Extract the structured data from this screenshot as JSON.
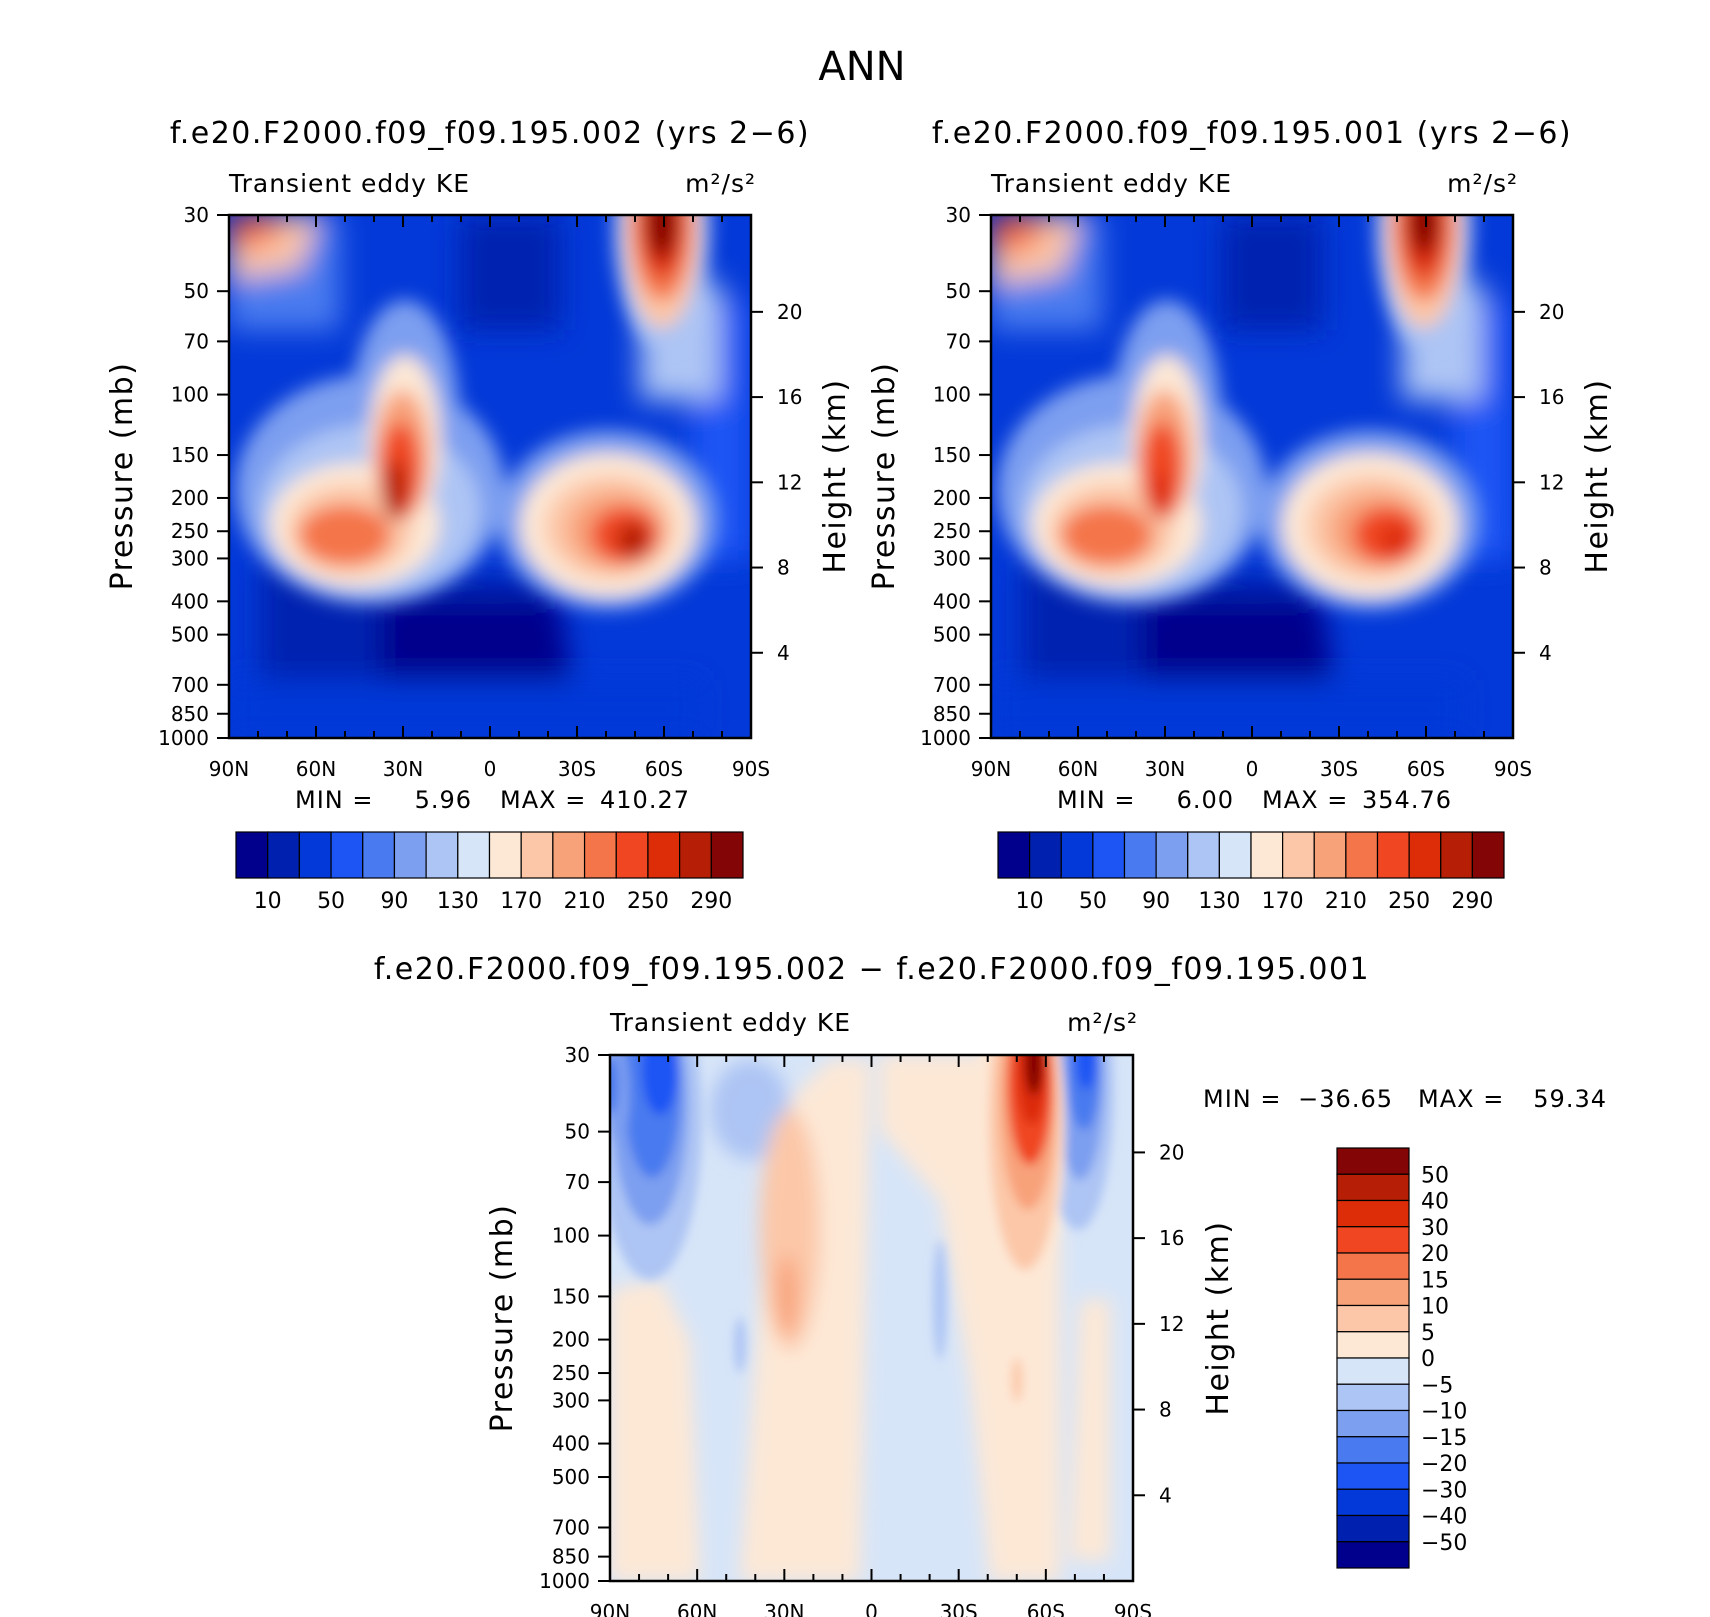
{
  "title": "ANN",
  "colors": {
    "axis": "#000000",
    "background": "#ffffff"
  },
  "chart_data": [
    {
      "id": "panel1",
      "type": "heatmap",
      "title": "f.e20.F2000.f09_f09.195.002 (yrs 2-6)",
      "variable": "Transient eddy KE",
      "units": "m²/s²",
      "ylabel": "Pressure (mb)",
      "y2label": "Height (km)",
      "x_ticks": [
        "90N",
        "60N",
        "30N",
        "0",
        "30S",
        "60S",
        "90S"
      ],
      "y_ticks": [
        "30",
        "50",
        "70",
        "100",
        "150",
        "200",
        "250",
        "300",
        "400",
        "500",
        "700",
        "850",
        "1000"
      ],
      "y2_ticks": [
        "20",
        "16",
        "12",
        "8",
        "4"
      ],
      "min_label": "MIN =",
      "min_value": "5.96",
      "max_label": "MAX =",
      "max_value": "410.27",
      "colorbar": {
        "colors": [
          "#00008c",
          "#0020b0",
          "#0339d8",
          "#1c55f4",
          "#4a7aef",
          "#7d9ff0",
          "#adc5f4",
          "#d7e5f8",
          "#fde8d6",
          "#fcc7a8",
          "#f8a27a",
          "#f47549",
          "#f04621",
          "#dc2c08",
          "#b61e06",
          "#830505"
        ],
        "labels": [
          "10",
          "50",
          "90",
          "130",
          "170",
          "210",
          "250",
          "290"
        ]
      },
      "blobs": [
        {
          "cx": 0.3,
          "cy": 0.25,
          "rx": 0.22,
          "ry": 0.22,
          "level": 15
        },
        {
          "cx": 0.22,
          "cy": 0.63,
          "rx": 0.11,
          "ry": 0.12,
          "level": 13
        },
        {
          "cx": 0.8,
          "cy": 0.03,
          "rx": 0.06,
          "ry": 0.14,
          "level": 15
        },
        {
          "cx": 0.03,
          "cy": 0.02,
          "rx": 0.13,
          "ry": 0.15,
          "level": 11
        }
      ]
    },
    {
      "id": "panel2",
      "type": "heatmap",
      "title": "f.e20.F2000.f09_f09.195.001 (yrs 2-6)",
      "variable": "Transient eddy KE",
      "units": "m²/s²",
      "ylabel": "Pressure (mb)",
      "y2label": "Height (km)",
      "x_ticks": [
        "90N",
        "60N",
        "30N",
        "0",
        "30S",
        "60S",
        "90S"
      ],
      "y_ticks": [
        "30",
        "50",
        "70",
        "100",
        "150",
        "200",
        "250",
        "300",
        "400",
        "500",
        "700",
        "850",
        "1000"
      ],
      "y2_ticks": [
        "20",
        "16",
        "12",
        "8",
        "4"
      ],
      "min_label": "MIN =",
      "min_value": "6.00",
      "max_label": "MAX =",
      "max_value": "354.76",
      "colorbar": {
        "colors": [
          "#00008c",
          "#0020b0",
          "#0339d8",
          "#1c55f4",
          "#4a7aef",
          "#7d9ff0",
          "#adc5f4",
          "#d7e5f8",
          "#fde8d6",
          "#fcc7a8",
          "#f8a27a",
          "#f47549",
          "#f04621",
          "#dc2c08",
          "#b61e06",
          "#830505"
        ],
        "labels": [
          "10",
          "50",
          "90",
          "130",
          "170",
          "210",
          "250",
          "290"
        ]
      }
    },
    {
      "id": "panel3",
      "type": "heatmap",
      "title": "f.e20.F2000.f09_f09.195.002 - f.e20.F2000.f09_f09.195.001",
      "variable": "Transient eddy KE",
      "units": "m²/s²",
      "ylabel": "Pressure (mb)",
      "y2label": "Height (km)",
      "x_ticks": [
        "90N",
        "60N",
        "30N",
        "0",
        "30S",
        "60S",
        "90S"
      ],
      "y_ticks": [
        "30",
        "50",
        "70",
        "100",
        "150",
        "200",
        "250",
        "300",
        "400",
        "500",
        "700",
        "850",
        "1000"
      ],
      "y2_ticks": [
        "20",
        "16",
        "12",
        "8",
        "4"
      ],
      "min_label": "MIN =",
      "min_value": "-36.65",
      "max_label": "MAX =",
      "max_value": "59.34",
      "colorbar": {
        "colors": [
          "#830505",
          "#b61e06",
          "#dc2c08",
          "#f04621",
          "#f47549",
          "#f8a27a",
          "#fcc7a8",
          "#fde8d6",
          "#d7e5f8",
          "#adc5f4",
          "#7d9ff0",
          "#4a7aef",
          "#1c55f4",
          "#0339d8",
          "#0020b0",
          "#00008c"
        ],
        "labels": [
          "50",
          "40",
          "30",
          "20",
          "15",
          "10",
          "5",
          "0",
          "-5",
          "-10",
          "-15",
          "-20",
          "-30",
          "-40",
          "-50"
        ]
      }
    }
  ]
}
